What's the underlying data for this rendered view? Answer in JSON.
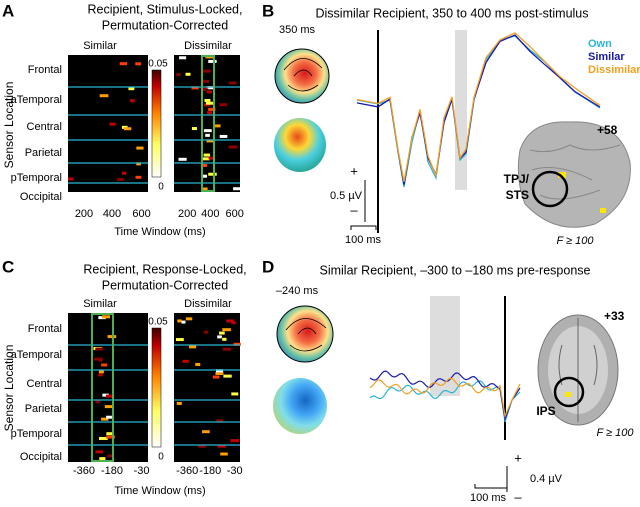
{
  "panels": [
    {
      "letter": "A",
      "title": [
        "Recipient, Stimulus-Locked,",
        "Permutation-Corrected"
      ],
      "subplots": [
        "Similar",
        "Dissimilar"
      ],
      "rows": [
        "Frontal",
        "aTemporal",
        "Central",
        "Parietal",
        "pTemporal",
        "Occipital"
      ],
      "colorbar": [
        "0.05",
        "0"
      ],
      "xticks": [
        [
          "200",
          "400",
          "600"
        ],
        [
          "200",
          "400",
          "600"
        ]
      ],
      "ylabel": "Sensor Location",
      "xlabel": "Time Window (ms)"
    },
    {
      "letter": "B",
      "title": "Dissimilar Recipient, 350 to 400 ms post-stimulus",
      "topo_time": "350 ms",
      "legend": [
        "Own",
        "Similar",
        "Dissimilar"
      ],
      "scale": {
        "plus": "+",
        "minus": "–",
        "amplitude": "0.5 µV",
        "time": "100 ms"
      },
      "brain": {
        "slice": "+58",
        "region": [
          "TPJ/",
          "STS"
        ],
        "threshold": "F ≥ 100"
      }
    },
    {
      "letter": "C",
      "title": [
        "Recipient, Response-Locked,",
        "Permutation-Corrected"
      ],
      "subplots": [
        "Similar",
        "Dissimilar"
      ],
      "rows": [
        "Frontal",
        "aTemporal",
        "Central",
        "Parietal",
        "pTemporal",
        "Occipital"
      ],
      "colorbar": [
        "0.05",
        "0"
      ],
      "xticks": [
        [
          "-360",
          "-180",
          "-30"
        ],
        [
          "-360",
          "-180",
          "-30"
        ]
      ],
      "ylabel": "Sensor Location",
      "xlabel": "Time Window (ms)"
    },
    {
      "letter": "D",
      "title": "Similar Recipient, –300 to –180 ms pre-response",
      "topo_time": "–240 ms",
      "scale": {
        "plus": "+",
        "minus": "–",
        "amplitude": "0.4 µV",
        "time": "100 ms"
      },
      "brain": {
        "slice": "+33",
        "region": [
          "IPS"
        ],
        "threshold": "F ≥ 100"
      }
    }
  ]
}
